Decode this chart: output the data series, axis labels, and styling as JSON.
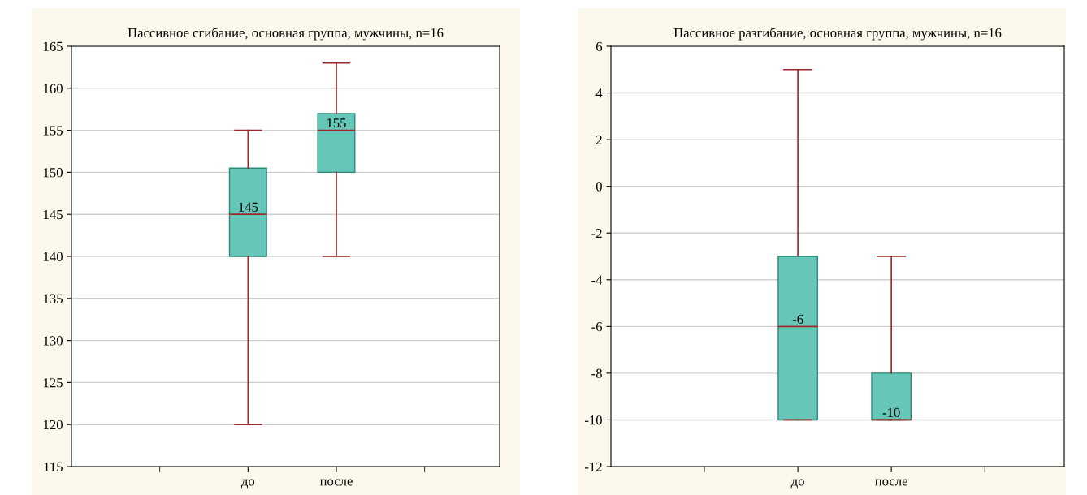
{
  "chart_data": [
    {
      "type": "box",
      "title": "Пассивное сгибание, основная группа, мужчины, n=16",
      "categories": [
        "до",
        "после"
      ],
      "series": [
        {
          "color": "#66c6b8",
          "boxes": [
            {
              "low": 120,
              "q1": 140,
              "median": 145,
              "q3": 150.5,
              "high": 155
            },
            {
              "low": 140,
              "q1": 150,
              "median": 155,
              "q3": 157,
              "high": 163
            }
          ],
          "value_labels": [
            "145",
            "155"
          ]
        }
      ],
      "ylim": [
        115,
        165
      ],
      "yticks": [
        115,
        120,
        125,
        130,
        135,
        140,
        145,
        150,
        155,
        160,
        165
      ],
      "grid": "y"
    },
    {
      "type": "box",
      "title": "Пассивное разгибание, основная группа, мужчины, n=16",
      "categories": [
        "до",
        "после"
      ],
      "series": [
        {
          "color": "#66c6b8",
          "boxes": [
            {
              "low": -10,
              "q1": -10,
              "median": -6,
              "q3": -3,
              "high": 5
            },
            {
              "low": -10,
              "q1": -10,
              "median": -10,
              "q3": -8,
              "high": -3
            }
          ],
          "value_labels": [
            "-6",
            "-10"
          ]
        }
      ],
      "ylim": [
        -12,
        6
      ],
      "yticks": [
        -12,
        -10,
        -8,
        -6,
        -4,
        -2,
        0,
        2,
        4,
        6
      ],
      "grid": "y"
    }
  ]
}
